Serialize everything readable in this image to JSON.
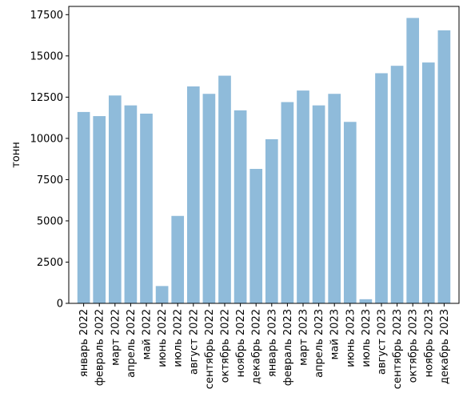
{
  "chart_data": {
    "type": "bar",
    "title": "",
    "xlabel": "",
    "ylabel": "тонн",
    "ylim": [
      0,
      18000
    ],
    "yticks": [
      "0",
      "2500",
      "5000",
      "7500",
      "10000",
      "12500",
      "15000",
      "17500"
    ],
    "bar_color": "#8fbbda",
    "grid": false,
    "categories": [
      "январь 2022",
      "февраль 2022",
      "март 2022",
      "апрель 2022",
      "май 2022",
      "июнь 2022",
      "июль 2022",
      "август 2022",
      "сентябрь 2022",
      "октябрь 2022",
      "ноябрь 2022",
      "декабрь 2022",
      "январь 2023",
      "февраль 2023",
      "март 2023",
      "апрель 2023",
      "май 2023",
      "июнь 2023",
      "июль 2023",
      "август 2023",
      "сентябрь 2023",
      "октябрь 2023",
      "ноябрь 2023",
      "декабрь 2023"
    ],
    "values": [
      11600,
      11350,
      12600,
      12000,
      11500,
      1050,
      5300,
      13150,
      12700,
      13800,
      11700,
      8150,
      9950,
      12200,
      12900,
      12000,
      12700,
      11000,
      250,
      13950,
      14400,
      17300,
      14600,
      16550
    ]
  }
}
